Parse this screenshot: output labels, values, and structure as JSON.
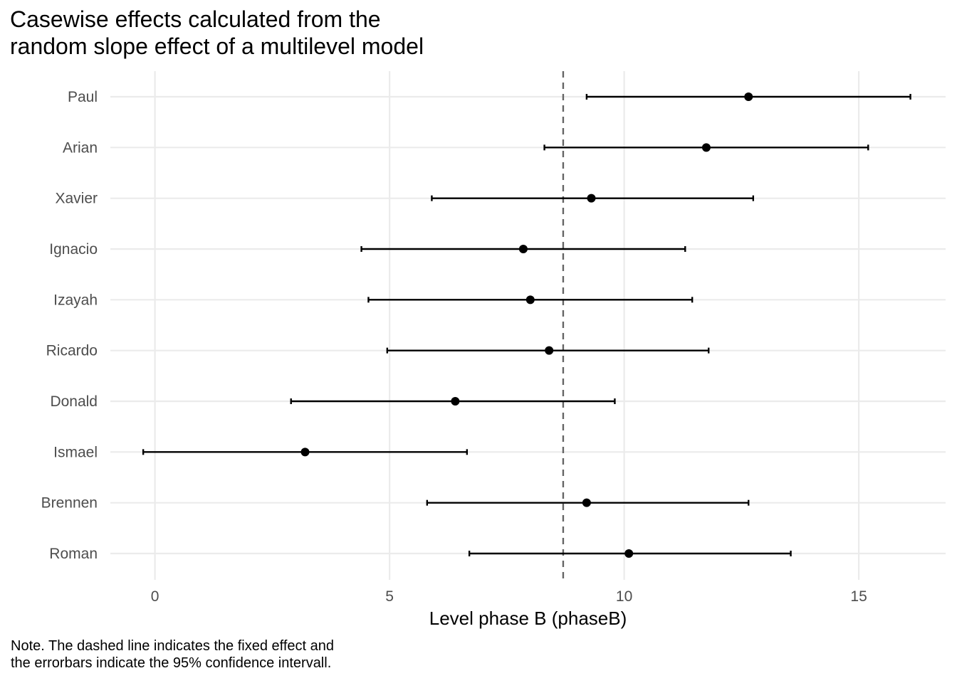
{
  "chart_data": {
    "type": "scatter",
    "title_lines": [
      "Casewise effects calculated from the",
      "random slope effect of a multilevel model"
    ],
    "xlabel": "Level phase B (phaseB)",
    "ylabel": "",
    "xlim": [
      -0.95,
      16.85
    ],
    "x_ticks": [
      0,
      5,
      10,
      15
    ],
    "grid": true,
    "fixed_effect": 8.7,
    "cases": [
      {
        "name": "Paul",
        "estimate": 12.65,
        "lower": 9.2,
        "upper": 16.1
      },
      {
        "name": "Arian",
        "estimate": 11.75,
        "lower": 8.3,
        "upper": 15.2
      },
      {
        "name": "Xavier",
        "estimate": 9.3,
        "lower": 5.9,
        "upper": 12.75
      },
      {
        "name": "Ignacio",
        "estimate": 7.85,
        "lower": 4.4,
        "upper": 11.3
      },
      {
        "name": "Izayah",
        "estimate": 8.0,
        "lower": 4.55,
        "upper": 11.45
      },
      {
        "name": "Ricardo",
        "estimate": 8.4,
        "lower": 4.95,
        "upper": 11.8
      },
      {
        "name": "Donald",
        "estimate": 6.4,
        "lower": 2.9,
        "upper": 9.8
      },
      {
        "name": "Ismael",
        "estimate": 3.2,
        "lower": -0.25,
        "upper": 6.65
      },
      {
        "name": "Brennen",
        "estimate": 9.2,
        "lower": 5.8,
        "upper": 12.65
      },
      {
        "name": "Roman",
        "estimate": 10.1,
        "lower": 6.7,
        "upper": 13.55
      }
    ],
    "colors": {
      "points": "#000000",
      "errorbars": "#000000",
      "fixed_effect_line": "#666666",
      "grid": "#ebebeb",
      "tick_labels": "#4d4d4d"
    }
  },
  "note_lines": [
    "Note. The dashed line indicates the fixed effect and",
    "the errorbars indicate the 95% confidence intervall."
  ]
}
